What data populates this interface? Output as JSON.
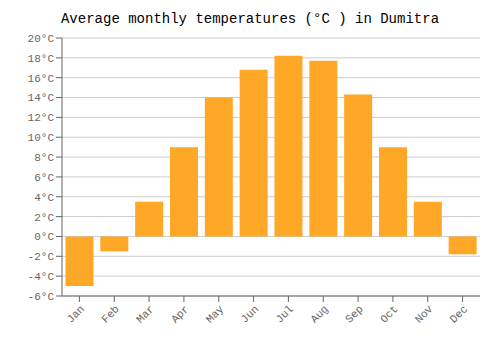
{
  "chart_data": {
    "type": "bar",
    "title": "Average monthly temperatures (°C ) in Dumitra",
    "categories": [
      "Jan",
      "Feb",
      "Mar",
      "Apr",
      "May",
      "Jun",
      "Jul",
      "Aug",
      "Sep",
      "Oct",
      "Nov",
      "Dec"
    ],
    "values": [
      -5.0,
      -1.5,
      3.5,
      9.0,
      14.0,
      16.8,
      18.2,
      17.7,
      14.3,
      9.0,
      3.5,
      -1.8
    ],
    "color": "#FFA726",
    "ylim": [
      -6,
      20
    ],
    "yticks": [
      {
        "value": -6,
        "label": "-6°C"
      },
      {
        "value": -4,
        "label": "-4°C"
      },
      {
        "value": -2,
        "label": "-2°C"
      },
      {
        "value": 0,
        "label": "0°C"
      },
      {
        "value": 2,
        "label": "2°C"
      },
      {
        "value": 4,
        "label": "4°C"
      },
      {
        "value": 6,
        "label": "6°C"
      },
      {
        "value": 8,
        "label": "8°C"
      },
      {
        "value": 10,
        "label": "10°C"
      },
      {
        "value": 12,
        "label": "12°C"
      },
      {
        "value": 14,
        "label": "14°C"
      },
      {
        "value": 16,
        "label": "16°C"
      },
      {
        "value": 18,
        "label": "18°C"
      },
      {
        "value": 20,
        "label": "20°C"
      }
    ],
    "grid": true
  }
}
